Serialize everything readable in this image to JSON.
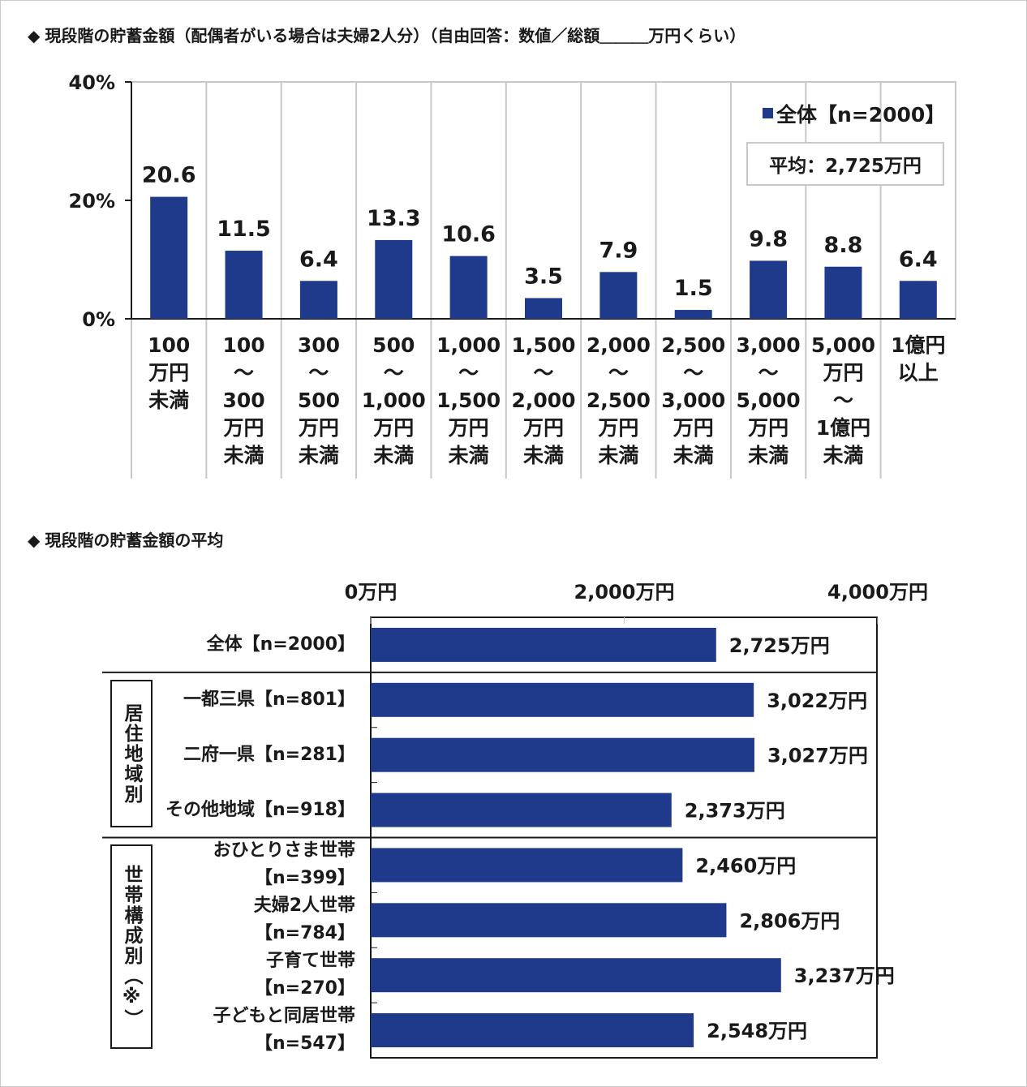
{
  "titles": {
    "chart1": "現段階の貯蓄金額（配偶者がいる場合は夫婦2人分）（自由回答：数値／総額＿＿＿万円くらい）",
    "chart2": "現段階の貯蓄金額の平均",
    "bullet": "◆"
  },
  "legend": {
    "label": "全体【n=2000】",
    "average": "平均：2,725万円"
  },
  "colors": {
    "bar": "#1f3a8a",
    "grid": "#c8c8c8",
    "axis": "#1a1a1a"
  },
  "groups": {
    "region": "居住地域別",
    "household": "世帯構成別（※）"
  },
  "chart_data": [
    {
      "type": "bar",
      "title": "現段階の貯蓄金額（配偶者がいる場合は夫婦2人分）（自由回答：数値／総額＿＿＿万円くらい）",
      "series": [
        {
          "name": "全体【n=2000】",
          "values": [
            20.6,
            11.5,
            6.4,
            13.3,
            10.6,
            3.5,
            7.9,
            1.5,
            9.8,
            8.8,
            6.4
          ]
        }
      ],
      "value_labels": [
        "20.6",
        "11.5",
        "6.4",
        "13.3",
        "10.6",
        "3.5",
        "7.9",
        "1.5",
        "9.8",
        "8.8",
        "6.4"
      ],
      "categories": [
        [
          "100",
          "万円",
          "未満"
        ],
        [
          "100",
          "～",
          "300",
          "万円",
          "未満"
        ],
        [
          "300",
          "～",
          "500",
          "万円",
          "未満"
        ],
        [
          "500",
          "～",
          "1,000",
          "万円",
          "未満"
        ],
        [
          "1,000",
          "～",
          "1,500",
          "万円",
          "未満"
        ],
        [
          "1,500",
          "～",
          "2,000",
          "万円",
          "未満"
        ],
        [
          "2,000",
          "～",
          "2,500",
          "万円",
          "未満"
        ],
        [
          "2,500",
          "～",
          "3,000",
          "万円",
          "未満"
        ],
        [
          "3,000",
          "～",
          "5,000",
          "万円",
          "未満"
        ],
        [
          "5,000",
          "万円",
          "～",
          "1億円",
          "未満"
        ],
        [
          "1億円",
          "以上"
        ]
      ],
      "yticks": [
        {
          "value": 0,
          "label": "0%"
        },
        {
          "value": 20,
          "label": "20%"
        },
        {
          "value": 40,
          "label": "40%"
        }
      ],
      "ylim": [
        0,
        40
      ],
      "legend_position": "top-right",
      "grid": false
    },
    {
      "type": "bar",
      "orientation": "horizontal",
      "title": "現段階の貯蓄金額の平均",
      "rows": [
        {
          "label": [
            "全体【n=2000】"
          ],
          "value": 2725,
          "value_label": "2,725万円",
          "group": ""
        },
        {
          "label": [
            "一都三県【n=801】"
          ],
          "value": 3022,
          "value_label": "3,022万円",
          "group": "居住地域別"
        },
        {
          "label": [
            "二府一県【n=281】"
          ],
          "value": 3027,
          "value_label": "3,027万円",
          "group": "居住地域別"
        },
        {
          "label": [
            "その他地域【n=918】"
          ],
          "value": 2373,
          "value_label": "2,373万円",
          "group": "居住地域別"
        },
        {
          "label": [
            "おひとりさま世帯",
            "【n=399】"
          ],
          "value": 2460,
          "value_label": "2,460万円",
          "group": "世帯構成別（※）"
        },
        {
          "label": [
            "夫婦2人世帯",
            "【n=784】"
          ],
          "value": 2806,
          "value_label": "2,806万円",
          "group": "世帯構成別（※）"
        },
        {
          "label": [
            "子育て世帯",
            "【n=270】"
          ],
          "value": 3237,
          "value_label": "3,237万円",
          "group": "世帯構成別（※）"
        },
        {
          "label": [
            "子どもと同居世帯",
            "【n=547】"
          ],
          "value": 2548,
          "value_label": "2,548万円",
          "group": "世帯構成別（※）"
        }
      ],
      "xticks": [
        {
          "value": 0,
          "label": "0万円"
        },
        {
          "value": 2000,
          "label": "2,000万円"
        },
        {
          "value": 4000,
          "label": "4,000万円"
        }
      ],
      "xlim": [
        0,
        4000
      ]
    }
  ]
}
